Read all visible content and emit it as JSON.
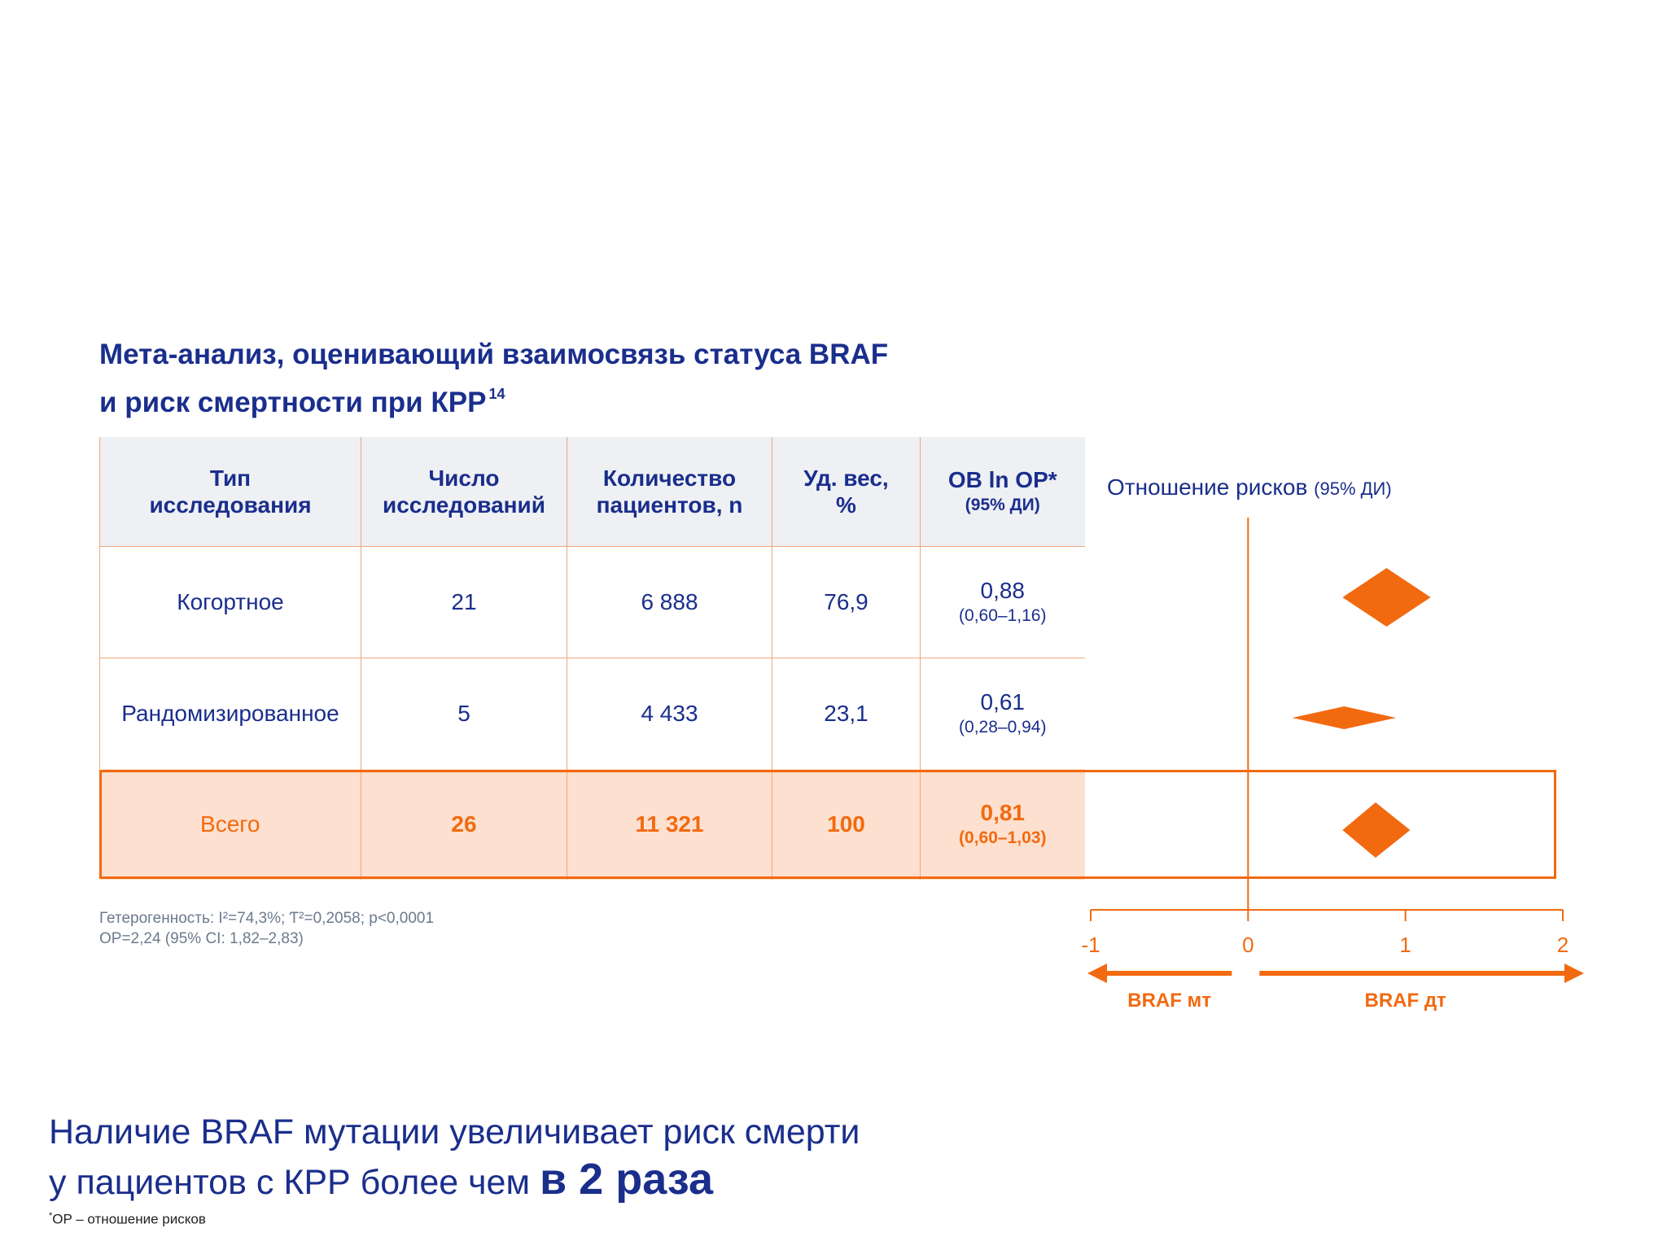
{
  "title": {
    "line1": "Мета-анализ, оценивающий взаимосвязь статуса BRAF",
    "line2": "и риск смертности при КРР",
    "ref": "14"
  },
  "table": {
    "headers": {
      "type": "Тип исследования",
      "studies": "Число исследований",
      "patients": "Количество пациентов, n",
      "weight": "Уд. вес, %",
      "ln_or": "ОВ ln OP*",
      "ln_or_sub": "(95% ДИ)"
    },
    "rows": [
      {
        "type": "Когортное",
        "studies": "21",
        "patients": "6 888",
        "weight": "76,9",
        "est": "0,88",
        "ci": "(0,60–1,16)"
      },
      {
        "type": "Рандомизированное",
        "studies": "5",
        "patients": "4 433",
        "weight": "23,1",
        "est": "0,61",
        "ci": "(0,28–0,94)"
      }
    ],
    "total": {
      "type": "Всего",
      "studies": "26",
      "patients": "11 321",
      "weight": "100",
      "est": "0,81",
      "ci": "(0,60–1,03)"
    }
  },
  "forest_header": {
    "main": "Отношение рисков",
    "sub": "(95% ДИ)"
  },
  "chart_data": {
    "type": "forest",
    "xlim": [
      -1,
      2
    ],
    "x_ticks": [
      "-1",
      "0",
      "1",
      "2"
    ],
    "reference_line": 0,
    "series": [
      {
        "name": "Когортное",
        "estimate": 0.88,
        "ci": [
          0.6,
          1.16
        ]
      },
      {
        "name": "Рандомизированное",
        "estimate": 0.61,
        "ci": [
          0.28,
          0.94
        ]
      },
      {
        "name": "Всего",
        "estimate": 0.81,
        "ci": [
          0.6,
          1.03
        ]
      }
    ],
    "arrows": {
      "left": "BRAF мт",
      "right": "BRAF дт"
    }
  },
  "stats": {
    "line1": "Гетерогенность: I²=74,3%; Ƭ²=0,2058; p<0,0001",
    "line2": "OP=2,24 (95% CI: 1,82–2,83)"
  },
  "conclusion": {
    "line1": "Наличие BRAF мутации увеличивает риск смерти",
    "line2": "у пациентов с КРР более чем",
    "emphasis": "в 2 раза"
  },
  "footnote": {
    "mark": "*",
    "text": "OP – отношение рисков"
  },
  "colors": {
    "navy": "#1a2e8c",
    "orange": "#f26a10",
    "header_bg": "#eef0f4",
    "total_bg": "#fde0cf"
  }
}
